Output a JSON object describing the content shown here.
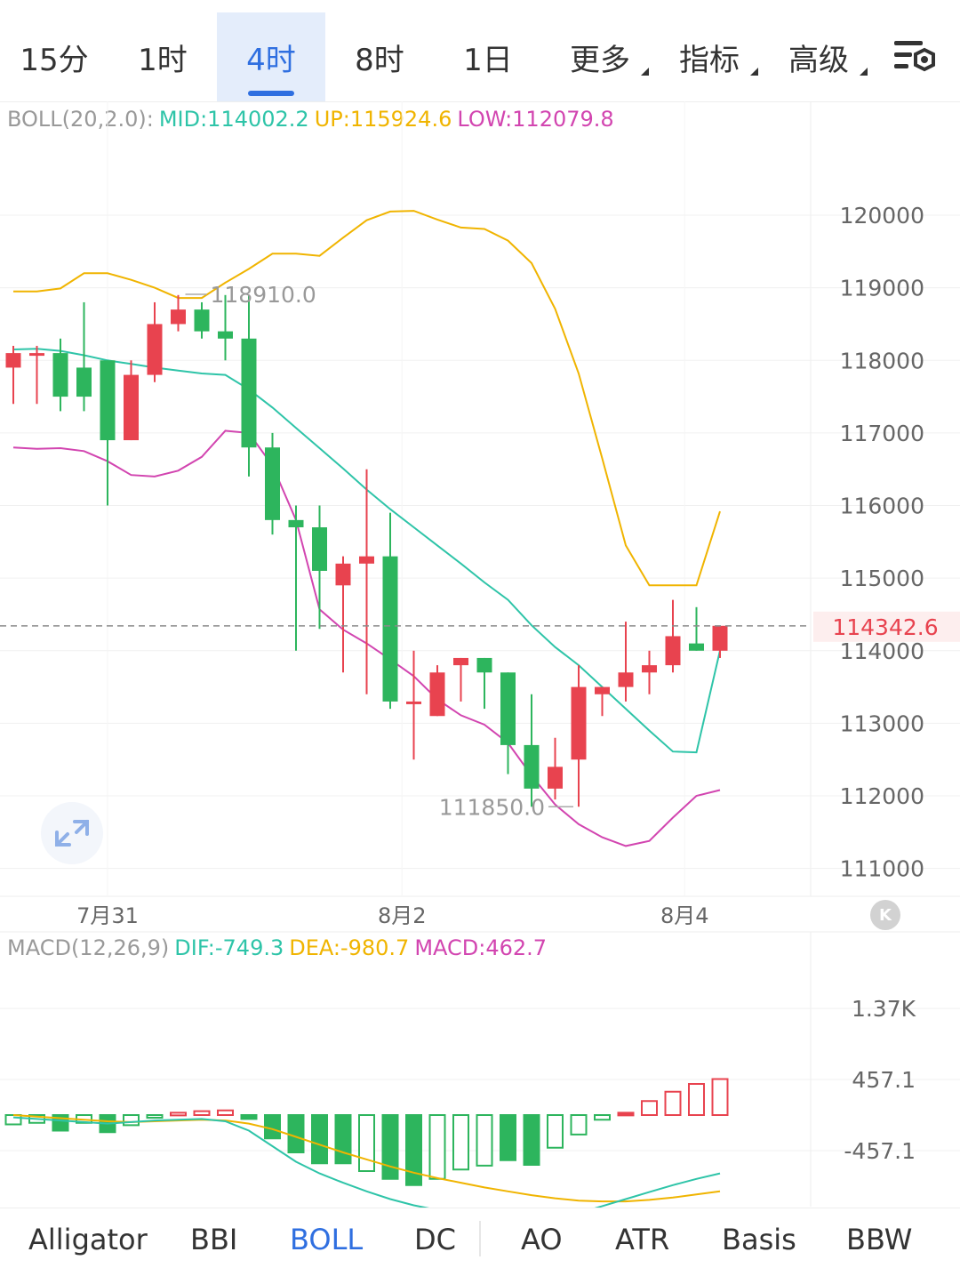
{
  "tabs": [
    {
      "label": "15分",
      "active": false,
      "dropdown": false
    },
    {
      "label": "1时",
      "active": false,
      "dropdown": false
    },
    {
      "label": "4时",
      "active": true,
      "dropdown": false
    },
    {
      "label": "8时",
      "active": false,
      "dropdown": false
    },
    {
      "label": "1日",
      "active": false,
      "dropdown": false
    },
    {
      "label": "更多",
      "active": false,
      "dropdown": true
    },
    {
      "label": "指标",
      "active": false,
      "dropdown": true
    },
    {
      "label": "高级",
      "active": false,
      "dropdown": true
    }
  ],
  "settings_icon": "chart-settings-icon",
  "boll_legend": {
    "name": "BOLL(20,2.0):",
    "mid": "MID:114002.2",
    "up": "UP:115924.6",
    "low": "LOW:112079.8"
  },
  "macd_legend": {
    "name": "MACD(12,26,9)",
    "dif": "DIF:-749.3",
    "dea": "DEA:-980.7",
    "macd": "MACD:462.7"
  },
  "current_price": "114342.6",
  "high_marker": "118910.0",
  "low_marker": "111850.0",
  "indicator_tabs": [
    {
      "label": "Alligator",
      "active": false
    },
    {
      "label": "BBI",
      "active": false
    },
    {
      "label": "BOLL",
      "active": true
    },
    {
      "label": "DC",
      "active": false
    },
    {
      "label": "AO",
      "active": false
    },
    {
      "label": "ATR",
      "active": false
    },
    {
      "label": "Basis",
      "active": false
    },
    {
      "label": "BBW",
      "active": false
    }
  ],
  "colors": {
    "up": "#e8434f",
    "down": "#2db55d",
    "mid": "#2ec4a8",
    "upper": "#f0b400",
    "lower": "#d245b0",
    "dif": "#2ec4a8",
    "dea": "#f0b400",
    "active": "#2f6fe0",
    "current_price": "#e8434f"
  },
  "chart_data": [
    {
      "type": "candlestick",
      "title": "BOLL(20,2.0)",
      "x_tick_labels": [
        "7月31",
        "8月2",
        "8月4"
      ],
      "y_tick_labels": [
        "120000",
        "119000",
        "118000",
        "117000",
        "116000",
        "115000",
        "114000",
        "113000",
        "112000",
        "111000"
      ],
      "ylim": [
        110600,
        121500
      ],
      "candles": [
        [
          117900,
          118200,
          117400,
          118100
        ],
        [
          118100,
          118200,
          117400,
          118100
        ],
        [
          118100,
          118300,
          117300,
          117500
        ],
        [
          117900,
          118800,
          117300,
          117500
        ],
        [
          118000,
          118000,
          116000,
          116900
        ],
        [
          116900,
          118000,
          116900,
          117800
        ],
        [
          117800,
          118800,
          117700,
          118500
        ],
        [
          118500,
          118900,
          118400,
          118700
        ],
        [
          118700,
          118800,
          118300,
          118400
        ],
        [
          118400,
          118900,
          118000,
          118300
        ],
        [
          118300,
          118900,
          116400,
          116800
        ],
        [
          116800,
          117000,
          115600,
          115800
        ],
        [
          115800,
          116000,
          114000,
          115700
        ],
        [
          115700,
          116000,
          114300,
          115100
        ],
        [
          114900,
          115300,
          113700,
          115200
        ],
        [
          115200,
          116500,
          113400,
          115300
        ],
        [
          115300,
          115900,
          113200,
          113300
        ],
        [
          113300,
          114000,
          112500,
          113300
        ],
        [
          113100,
          113800,
          113100,
          113700
        ],
        [
          113800,
          113900,
          113300,
          113900
        ],
        [
          113900,
          113900,
          113200,
          113700
        ],
        [
          113700,
          113700,
          112300,
          112700
        ],
        [
          112700,
          113400,
          111850,
          112100
        ],
        [
          112100,
          112800,
          111950,
          112400
        ],
        [
          112500,
          113800,
          111850,
          113500
        ],
        [
          113400,
          113500,
          113100,
          113500
        ],
        [
          113500,
          114400,
          113300,
          113700
        ],
        [
          113700,
          114000,
          113400,
          113800
        ],
        [
          113800,
          114700,
          113700,
          114200
        ],
        [
          114100,
          114600,
          114000,
          114000
        ],
        [
          114000,
          114300,
          113900,
          114343
        ]
      ],
      "boll": {
        "upper": [
          118950,
          118950,
          118990,
          119200,
          119200,
          119110,
          119000,
          118860,
          118860,
          119070,
          119260,
          119470,
          119470,
          119440,
          119690,
          119930,
          120050,
          120060,
          119940,
          119830,
          119810,
          119650,
          119340,
          118710,
          117820,
          116650,
          115450,
          114900,
          114900,
          114900,
          115920
        ],
        "mid": [
          118150,
          118160,
          118130,
          118070,
          118000,
          117950,
          117900,
          117860,
          117820,
          117800,
          117600,
          117350,
          117070,
          116790,
          116510,
          116220,
          115950,
          115700,
          115450,
          115200,
          114940,
          114700,
          114350,
          114050,
          113800,
          113500,
          113200,
          112900,
          112610,
          112600,
          114002
        ],
        "lower": [
          116800,
          116780,
          116790,
          116750,
          116610,
          116420,
          116400,
          116480,
          116670,
          117030,
          117000,
          116550,
          115800,
          114570,
          114290,
          114100,
          113880,
          113650,
          113330,
          113110,
          112980,
          112730,
          112280,
          111880,
          111610,
          111430,
          111310,
          111380,
          111700,
          112000,
          112080
        ]
      },
      "current_price": 114342.6,
      "high_marker": 118910.0,
      "low_marker": 111850.0
    },
    {
      "type": "bar",
      "title": "MACD(12,26,9)",
      "y_tick_labels": [
        "1.37K",
        "457.1",
        "-457.1",
        "-1.37K"
      ],
      "ylim": [
        -1500,
        1600
      ],
      "histogram": [
        -120,
        -100,
        -200,
        -100,
        -220,
        -130,
        -20,
        30,
        50,
        60,
        -50,
        -300,
        -480,
        -620,
        -620,
        -720,
        -820,
        -900,
        -820,
        -700,
        -650,
        -580,
        -640,
        -420,
        -250,
        -60,
        30,
        180,
        300,
        400,
        462.7
      ],
      "hist_hollow": [
        true,
        true,
        false,
        true,
        false,
        true,
        true,
        true,
        true,
        true,
        false,
        false,
        false,
        false,
        false,
        true,
        false,
        false,
        true,
        true,
        true,
        false,
        false,
        true,
        true,
        true,
        false,
        true,
        true,
        true,
        true
      ],
      "dif": [
        -30,
        -50,
        -70,
        -90,
        -110,
        -90,
        -70,
        -60,
        -50,
        -80,
        -200,
        -400,
        -600,
        -750,
        -870,
        -980,
        -1080,
        -1160,
        -1220,
        -1270,
        -1300,
        -1340,
        -1370,
        -1340,
        -1260,
        -1170,
        -1080,
        -990,
        -900,
        -820,
        -749.3
      ],
      "dea": [
        0,
        -20,
        -40,
        -60,
        -80,
        -90,
        -80,
        -70,
        -60,
        -70,
        -110,
        -180,
        -280,
        -380,
        -480,
        -570,
        -660,
        -740,
        -810,
        -870,
        -930,
        -980,
        -1030,
        -1070,
        -1100,
        -1110,
        -1110,
        -1090,
        -1060,
        -1020,
        -980.7
      ]
    }
  ]
}
